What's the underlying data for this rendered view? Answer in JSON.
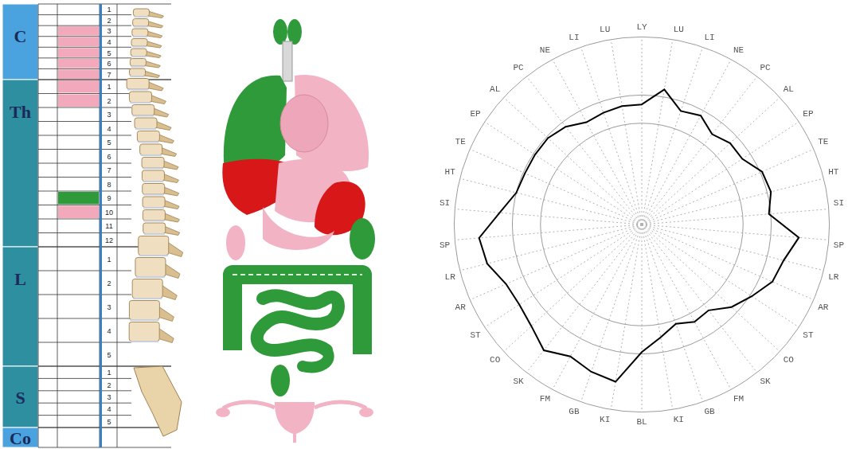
{
  "diagram": {
    "regions": [
      {
        "label": "C",
        "numbers": [
          1,
          2,
          3,
          4,
          5,
          6,
          7
        ]
      },
      {
        "label": "Th",
        "numbers": [
          1,
          2,
          3,
          4,
          5,
          6,
          7,
          8,
          9,
          10,
          11,
          12
        ]
      },
      {
        "label": "L",
        "numbers": [
          1,
          2,
          3,
          4,
          5
        ]
      },
      {
        "label": "S",
        "numbers": [
          1,
          2,
          3,
          4,
          5
        ]
      },
      {
        "label": "Co",
        "numbers": [
          null
        ]
      }
    ],
    "highlights": [
      {
        "region": "C",
        "number": 3,
        "color": "#f2a9bb"
      },
      {
        "region": "C",
        "number": 4,
        "color": "#f2a9bb"
      },
      {
        "region": "C",
        "number": 5,
        "color": "#f2a9bb"
      },
      {
        "region": "C",
        "number": 6,
        "color": "#f2a9bb"
      },
      {
        "region": "C",
        "number": 7,
        "color": "#f2a9bb"
      },
      {
        "region": "Th",
        "number": 1,
        "color": "#f2a9bb"
      },
      {
        "region": "Th",
        "number": 2,
        "color": "#f2a9bb"
      },
      {
        "region": "Th",
        "number": 9,
        "color": "#2e9a3a"
      },
      {
        "region": "Th",
        "number": 10,
        "color": "#f2a9bb"
      }
    ]
  },
  "chart_data": {
    "type": "radar",
    "categories": [
      "LY",
      "LU",
      "LI",
      "NE",
      "PC",
      "AL",
      "EP",
      "TE",
      "HT",
      "SI",
      "SP",
      "LR",
      "AR",
      "ST",
      "CO",
      "SK",
      "FM",
      "GB",
      "KI",
      "BL",
      "KI",
      "GB",
      "FM",
      "SK",
      "CO",
      "ST",
      "AR",
      "LR",
      "SP",
      "SI",
      "HT",
      "TE",
      "EP",
      "AL",
      "PC",
      "NE",
      "LI",
      "LU"
    ],
    "values": [
      64,
      73,
      64,
      66,
      61,
      64,
      64,
      70,
      71,
      68,
      84,
      78,
      76,
      70,
      65,
      58,
      59,
      56,
      61,
      68,
      85,
      83,
      80,
      85,
      80,
      78,
      79,
      85,
      87,
      76,
      69,
      68,
      68,
      68,
      66,
      62,
      63,
      64
    ],
    "color": "#000000",
    "ylim": [
      0,
      100
    ],
    "yticks": [
      0,
      54,
      69,
      100
    ],
    "grid": true,
    "tick_labels": "x"
  }
}
